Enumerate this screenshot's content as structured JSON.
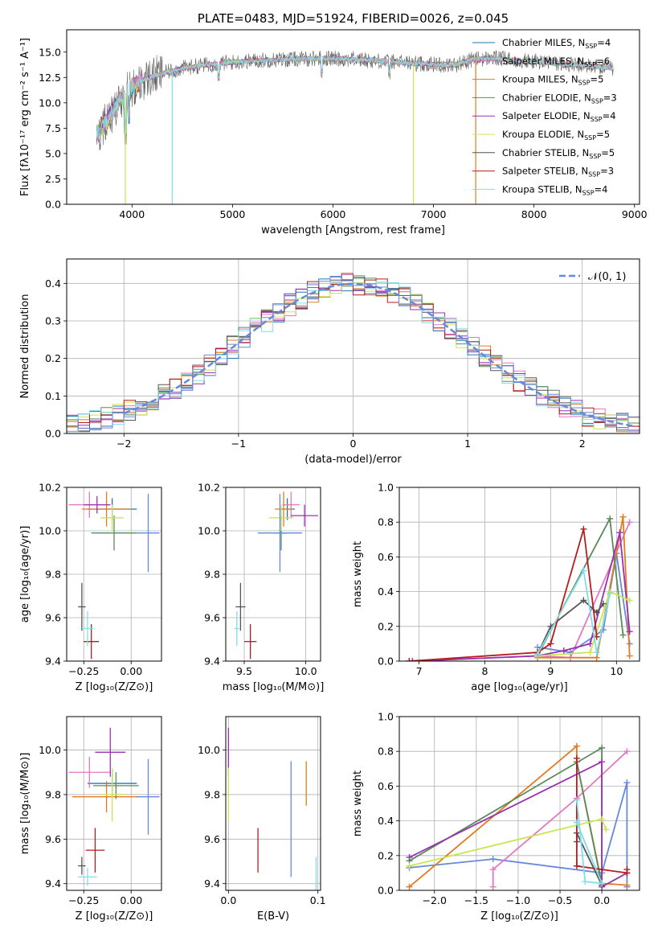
{
  "chart_data": [
    {
      "id": "spectrum",
      "type": "line",
      "title": "PLATE=0483, MJD=51924, FIBERID=0026, z=0.045",
      "xlabel": "wavelength [Angstrom, rest frame]",
      "ylabel": "Flux [fλ10⁻¹⁷ erg cm⁻² s⁻¹ A⁻¹]",
      "xlim": [
        3350,
        9050
      ],
      "ylim": [
        0,
        17.2
      ],
      "xticks": [
        4000,
        5000,
        6000,
        7000,
        8000,
        9000
      ],
      "yticks": [
        0.0,
        2.5,
        5.0,
        7.5,
        10.0,
        12.5,
        15.0
      ],
      "ytick_labels": [
        "0.0",
        "2.5",
        "5.0",
        "7.5",
        "10.0",
        "12.5",
        "15.0"
      ],
      "grid": false,
      "legend_position": "upper right",
      "legend": [
        {
          "label": "Chabrier MILES, N",
          "sub": "SSP",
          "suffix": "=4",
          "color": "#1f77b4"
        },
        {
          "label": "Salpeter MILES, N",
          "sub": "SSP",
          "suffix": "=6",
          "color": "#e377c2"
        },
        {
          "label": "Kroupa MILES, N",
          "sub": "SSP",
          "suffix": "=5",
          "color": "#d97f1a"
        },
        {
          "label": "Chabrier ELODIE, N",
          "sub": "SSP",
          "suffix": "=3",
          "color": "#5a8a5a"
        },
        {
          "label": "Salpeter ELODIE, N",
          "sub": "SSP",
          "suffix": "=4",
          "color": "#9b30b0"
        },
        {
          "label": "Kroupa ELODIE, N",
          "sub": "SSP",
          "suffix": "=5",
          "color": "#d4e157"
        },
        {
          "label": "Chabrier STELIB, N",
          "sub": "SSP",
          "suffix": "=5",
          "color": "#555555"
        },
        {
          "label": "Salpeter STELIB, N",
          "sub": "SSP",
          "suffix": "=3",
          "color": "#b71c1c"
        },
        {
          "label": "Kroupa STELIB, N",
          "sub": "SSP",
          "suffix": "=4",
          "color": "#80deea"
        }
      ],
      "continuum": {
        "x": [
          3650,
          3750,
          3850,
          3950,
          4050,
          4150,
          4300,
          4500,
          4700,
          5000,
          5300,
          5600,
          5900,
          6200,
          6500,
          6800,
          7000,
          7200,
          7400,
          7600,
          7800,
          8000,
          8300,
          8600,
          8800
        ],
        "y": [
          6.8,
          8.2,
          9.8,
          11.2,
          11.9,
          12.4,
          12.9,
          13.4,
          13.7,
          14.0,
          14.2,
          14.3,
          14.4,
          14.3,
          14.1,
          13.9,
          13.8,
          13.7,
          14.3,
          14.4,
          14.2,
          14.1,
          13.8,
          13.6,
          13.4
        ]
      },
      "dips": [
        {
          "x": 3934,
          "series": 5
        },
        {
          "x": 4400,
          "series": 8
        },
        {
          "x": 6800,
          "series": 5
        },
        {
          "x": 7420,
          "series": 2
        }
      ]
    },
    {
      "id": "residuals",
      "type": "histogram",
      "xlabel": "(data-model)/error",
      "ylabel": "Normed distribution",
      "xlim": [
        -2.5,
        2.5
      ],
      "ylim": [
        0,
        0.465
      ],
      "xticks": [
        -2,
        -1,
        0,
        1,
        2
      ],
      "xtick_labels": [
        "−2",
        "−1",
        "0",
        "1",
        "2"
      ],
      "yticks": [
        0.0,
        0.1,
        0.2,
        0.3,
        0.4
      ],
      "ytick_labels": [
        "0.0",
        "0.1",
        "0.2",
        "0.3",
        "0.4"
      ],
      "grid": true,
      "legend_position": "upper right",
      "reference_curve": {
        "label": "𝒩(0, 1)",
        "mean": 0,
        "sigma": 1,
        "color": "#6688dd"
      },
      "bin_width": 0.1
    },
    {
      "id": "age-vs-z",
      "type": "errorbar",
      "xlabel": "Z [log₁₀(Z/Z⊙)]",
      "ylabel": "age  [log₁₀(age/yr)]",
      "xlim": [
        -0.34,
        0.16
      ],
      "ylim": [
        9.4,
        10.2
      ],
      "xticks": [
        -0.25,
        0.0
      ],
      "xtick_labels": [
        "−0.25",
        "0.00"
      ],
      "yticks": [
        9.4,
        9.6,
        9.8,
        10.0,
        10.2
      ],
      "ytick_labels": [
        "9.4",
        "9.6",
        "9.8",
        "10.0",
        "10.2"
      ],
      "grid": true,
      "points": [
        {
          "x": -0.1,
          "xerr": 0.13,
          "y": 10.1,
          "yerr": 0.05,
          "series": 0
        },
        {
          "x": -0.22,
          "xerr": 0.11,
          "y": 10.12,
          "yerr": 0.06,
          "series": 1
        },
        {
          "x": -0.13,
          "xerr": 0.13,
          "y": 10.1,
          "yerr": 0.08,
          "series": 2
        },
        {
          "x": -0.09,
          "xerr": 0.12,
          "y": 9.99,
          "yerr": 0.08,
          "series": 3
        },
        {
          "x": -0.18,
          "xerr": 0.07,
          "y": 10.12,
          "yerr": 0.04,
          "series": 4
        },
        {
          "x": -0.1,
          "xerr": 0.06,
          "y": 10.06,
          "yerr": 0.06,
          "series": 5
        },
        {
          "x": -0.26,
          "xerr": 0.02,
          "y": 9.65,
          "yerr": 0.11,
          "series": 6
        },
        {
          "x": -0.21,
          "xerr": 0.04,
          "y": 9.49,
          "yerr": 0.08,
          "series": 7
        },
        {
          "x": -0.23,
          "xerr": 0.03,
          "y": 9.55,
          "yerr": 0.08,
          "series": 8
        },
        {
          "x": 0.09,
          "xerr": 0.06,
          "y": 9.99,
          "yerr": 0.18,
          "series": 9
        }
      ]
    },
    {
      "id": "age-vs-mass",
      "type": "errorbar",
      "xlabel": "mass [log₁₀(M/M⊙)]",
      "ylabel": "",
      "xlim": [
        9.35,
        10.12
      ],
      "ylim": [
        9.4,
        10.2
      ],
      "xticks": [
        9.5,
        10.0
      ],
      "xtick_labels": [
        "9.5",
        "10.0"
      ],
      "yticks": [
        9.4,
        9.6,
        9.8,
        10.0,
        10.2
      ],
      "ytick_labels": [
        "9.4",
        "9.6",
        "9.8",
        "10.0",
        "10.2"
      ],
      "grid": true,
      "points": [
        {
          "x": 9.85,
          "xerr": 0.06,
          "y": 10.1,
          "yerr": 0.05,
          "series": 0
        },
        {
          "x": 9.88,
          "xerr": 0.07,
          "y": 10.12,
          "yerr": 0.06,
          "series": 1
        },
        {
          "x": 9.82,
          "xerr": 0.07,
          "y": 10.1,
          "yerr": 0.08,
          "series": 2
        },
        {
          "x": 9.8,
          "xerr": 0.06,
          "y": 9.99,
          "yerr": 0.08,
          "series": 3
        },
        {
          "x": 9.99,
          "xerr": 0.11,
          "y": 10.07,
          "yerr": 0.05,
          "series": 4
        },
        {
          "x": 9.8,
          "xerr": 0.1,
          "y": 10.06,
          "yerr": 0.06,
          "series": 5
        },
        {
          "x": 9.47,
          "xerr": 0.04,
          "y": 9.65,
          "yerr": 0.11,
          "series": 6
        },
        {
          "x": 9.55,
          "xerr": 0.05,
          "y": 9.49,
          "yerr": 0.08,
          "series": 7
        },
        {
          "x": 9.44,
          "xerr": 0.02,
          "y": 9.55,
          "yerr": 0.08,
          "series": 8
        },
        {
          "x": 9.79,
          "xerr": 0.18,
          "y": 9.99,
          "yerr": 0.18,
          "series": 9
        }
      ]
    },
    {
      "id": "mass-weight-vs-age",
      "type": "line",
      "xlabel": "age  [log₁₀(age/yr)]",
      "ylabel": "mass weight",
      "xlim": [
        6.7,
        10.35
      ],
      "ylim": [
        0,
        1.0
      ],
      "xticks": [
        7,
        8,
        9,
        10
      ],
      "xtick_labels": [
        "7",
        "8",
        "9",
        "10"
      ],
      "yticks": [
        0.0,
        0.2,
        0.4,
        0.6,
        0.8,
        1.0
      ],
      "ytick_labels": [
        "0.0",
        "0.2",
        "0.4",
        "0.6",
        "0.8",
        "1.0"
      ],
      "grid": true,
      "series": [
        {
          "series": 9,
          "x": [
            8.8,
            9.3,
            9.8,
            10.0,
            10.2
          ],
          "y": [
            0.08,
            0.05,
            0.18,
            0.62,
            0.1
          ]
        },
        {
          "series": 1,
          "x": [
            6.9,
            8.8,
            9.3,
            10.2
          ],
          "y": [
            0.0,
            0.03,
            0.02,
            0.8
          ]
        },
        {
          "series": 2,
          "x": [
            8.8,
            9.7,
            10.1,
            10.2
          ],
          "y": [
            0.02,
            0.02,
            0.83,
            0.03
          ]
        },
        {
          "series": 3,
          "x": [
            8.8,
            9.9,
            10.1
          ],
          "y": [
            0.03,
            0.82,
            0.15
          ]
        },
        {
          "series": 4,
          "x": [
            6.9,
            8.8,
            9.2,
            9.6,
            10.05,
            10.2
          ],
          "y": [
            0.0,
            0.03,
            0.06,
            0.1,
            0.74,
            0.17
          ]
        },
        {
          "series": 5,
          "x": [
            8.8,
            9.6,
            9.9,
            10.2
          ],
          "y": [
            0.03,
            0.05,
            0.4,
            0.35
          ]
        },
        {
          "series": 6,
          "x": [
            8.8,
            9.0,
            9.5,
            9.7,
            9.8
          ],
          "y": [
            0.04,
            0.2,
            0.35,
            0.28,
            0.33
          ]
        },
        {
          "series": 7,
          "x": [
            6.85,
            8.8,
            9.0,
            9.5,
            9.7
          ],
          "y": [
            0.0,
            0.05,
            0.1,
            0.76,
            0.14
          ]
        },
        {
          "series": 8,
          "x": [
            8.8,
            9.5,
            9.7,
            9.9
          ],
          "y": [
            0.04,
            0.52,
            0.05,
            0.39
          ]
        }
      ]
    },
    {
      "id": "mass-vs-z",
      "type": "errorbar",
      "xlabel": "Z [log₁₀(Z/Z⊙)]",
      "ylabel": "mass [log₁₀(M/M⊙)]",
      "xlim": [
        -0.34,
        0.16
      ],
      "ylim": [
        9.37,
        10.15
      ],
      "xticks": [
        -0.25,
        0.0
      ],
      "xtick_labels": [
        "−0.25",
        "0.00"
      ],
      "yticks": [
        9.4,
        9.6,
        9.8,
        10.0
      ],
      "ytick_labels": [
        "9.4",
        "9.6",
        "9.8",
        "10.0"
      ],
      "grid": true,
      "points": [
        {
          "x": -0.1,
          "xerr": 0.13,
          "y": 9.85,
          "yerr": 0.06,
          "series": 0
        },
        {
          "x": -0.22,
          "xerr": 0.11,
          "y": 9.9,
          "yerr": 0.07,
          "series": 1
        },
        {
          "x": -0.13,
          "xerr": 0.18,
          "y": 9.79,
          "yerr": 0.07,
          "series": 2
        },
        {
          "x": -0.08,
          "xerr": 0.12,
          "y": 9.84,
          "yerr": 0.06,
          "series": 3
        },
        {
          "x": -0.11,
          "xerr": 0.08,
          "y": 9.99,
          "yerr": 0.11,
          "series": 4
        },
        {
          "x": -0.1,
          "xerr": 0.06,
          "y": 9.8,
          "yerr": 0.12,
          "series": 5
        },
        {
          "x": -0.26,
          "xerr": 0.02,
          "y": 9.48,
          "yerr": 0.04,
          "series": 6
        },
        {
          "x": -0.19,
          "xerr": 0.05,
          "y": 9.55,
          "yerr": 0.1,
          "series": 7
        },
        {
          "x": -0.23,
          "xerr": 0.05,
          "y": 9.43,
          "yerr": 0.04,
          "series": 8
        },
        {
          "x": 0.09,
          "xerr": 0.06,
          "y": 9.79,
          "yerr": 0.17,
          "series": 9
        }
      ]
    },
    {
      "id": "mass-vs-ebv",
      "type": "errorbar",
      "xlabel": "E(B-V)",
      "ylabel": "",
      "xlim": [
        -0.003,
        0.103
      ],
      "ylim": [
        9.37,
        10.15
      ],
      "xticks": [
        0.0,
        0.1
      ],
      "xtick_labels": [
        "0.0",
        "0.1"
      ],
      "yticks": [
        9.4,
        9.6,
        9.8,
        10.0
      ],
      "ytick_labels": [
        "9.4",
        "9.6",
        "9.8",
        "10.0"
      ],
      "grid": true,
      "points": [
        {
          "x": 0.0,
          "y": 9.99,
          "yerr": 0.11,
          "series": 4
        },
        {
          "x": 0.0,
          "y": 9.8,
          "yerr": 0.12,
          "series": 5
        },
        {
          "x": 0.033,
          "y": 9.55,
          "yerr": 0.1,
          "series": 7
        },
        {
          "x": 0.07,
          "y": 9.69,
          "yerr": 0.26,
          "series": 9
        },
        {
          "x": 0.087,
          "y": 9.85,
          "yerr": 0.1,
          "series": 2
        },
        {
          "x": 0.098,
          "y": 9.43,
          "yerr": 0.09,
          "series": 8
        }
      ]
    },
    {
      "id": "mass-weight-vs-z",
      "type": "line",
      "xlabel": "Z [log₁₀(Z/Z⊙)]",
      "ylabel": "mass weight",
      "xlim": [
        -2.42,
        0.45
      ],
      "ylim": [
        0,
        1.0
      ],
      "xticks": [
        -2.0,
        -1.5,
        -1.0,
        -0.5,
        0.0
      ],
      "xtick_labels": [
        "−2.0",
        "−1.5",
        "−1.0",
        "−0.5",
        "0.0"
      ],
      "yticks": [
        0.0,
        0.2,
        0.4,
        0.6,
        0.8,
        1.0
      ],
      "ytick_labels": [
        "0.0",
        "0.2",
        "0.4",
        "0.6",
        "0.8",
        "1.0"
      ],
      "grid": true,
      "series": [
        {
          "series": 9,
          "x": [
            -2.3,
            -1.3,
            0.0,
            0.3,
            0.3
          ],
          "y": [
            0.13,
            0.18,
            0.1,
            0.62,
            0.02
          ]
        },
        {
          "series": 1,
          "x": [
            -1.3,
            -1.3,
            -0.3,
            0.3
          ],
          "y": [
            0.02,
            0.12,
            0.53,
            0.8
          ]
        },
        {
          "series": 2,
          "x": [
            -2.3,
            -0.3,
            -0.3,
            0.0,
            0.3
          ],
          "y": [
            0.02,
            0.83,
            0.74,
            0.04,
            0.03
          ]
        },
        {
          "series": 3,
          "x": [
            -2.3,
            0.0,
            0.0,
            -0.3
          ],
          "y": [
            0.17,
            0.82,
            0.03,
            0.74
          ]
        },
        {
          "series": 4,
          "x": [
            -2.3,
            0.0,
            0.0,
            0.3
          ],
          "y": [
            0.19,
            0.74,
            0.02,
            0.1
          ]
        },
        {
          "series": 5,
          "x": [
            -2.3,
            0.0,
            0.05
          ],
          "y": [
            0.14,
            0.41,
            0.35
          ]
        },
        {
          "series": 6,
          "x": [
            -0.3,
            -0.3,
            0.0
          ],
          "y": [
            0.28,
            0.33,
            0.03
          ]
        },
        {
          "series": 7,
          "x": [
            -0.3,
            -0.3,
            0.3,
            0.3
          ],
          "y": [
            0.76,
            0.14,
            0.1,
            0.12
          ]
        },
        {
          "series": 8,
          "x": [
            -0.3,
            -0.2,
            0.0,
            -0.3
          ],
          "y": [
            0.52,
            0.05,
            0.04,
            0.39
          ]
        }
      ]
    }
  ],
  "series_colors": [
    "#1f77b4",
    "#e377c2",
    "#e07b22",
    "#5a8a5a",
    "#9b30b0",
    "#c8e650",
    "#555555",
    "#b71c1c",
    "#80deea",
    "#6688dd"
  ]
}
